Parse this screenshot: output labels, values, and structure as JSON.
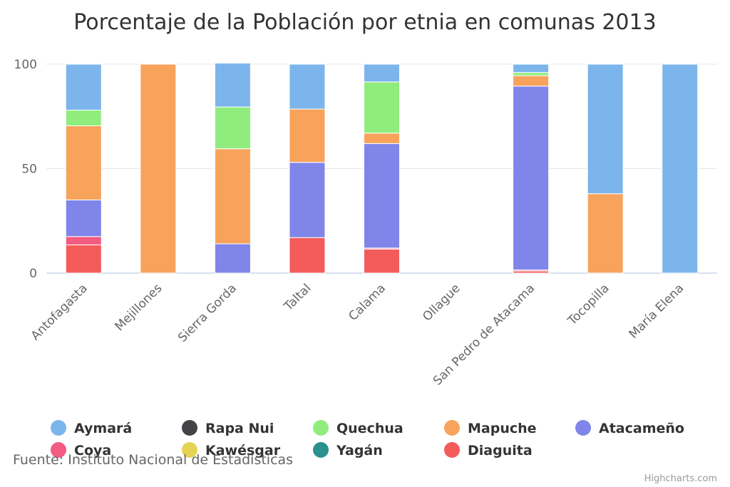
{
  "chart_data": {
    "type": "bar",
    "stacked": true,
    "title": "Porcentaje de la Población por etnia en comunas 2013",
    "categories": [
      "Antofagasta",
      "Mejillones",
      "Sierra Gorda",
      "Taltal",
      "Calama",
      "Ollague",
      "San Pedro de Atacama",
      "Tocopilla",
      "María Elena"
    ],
    "ylim": [
      0,
      100
    ],
    "yticks": [
      0,
      50,
      100
    ],
    "grid": true,
    "legend_position": "bottom",
    "series": [
      {
        "name": "Aymará",
        "color": "#7cb5ec",
        "values": [
          22,
          0,
          21,
          21.5,
          8.5,
          0,
          4,
          62,
          100
        ]
      },
      {
        "name": "Rapa Nui",
        "color": "#434348",
        "values": [
          0,
          0,
          0,
          0,
          0,
          0,
          0,
          0,
          0
        ]
      },
      {
        "name": "Quechua",
        "color": "#90ed7d",
        "values": [
          7.5,
          0,
          20,
          0,
          24.5,
          0,
          1.5,
          0,
          0
        ]
      },
      {
        "name": "Mapuche",
        "color": "#f7a35c",
        "values": [
          35.5,
          100,
          45.5,
          25.5,
          5,
          0,
          5,
          38,
          0
        ]
      },
      {
        "name": "Atacameño",
        "color": "#8085e9",
        "values": [
          17.5,
          0,
          14,
          36,
          50,
          0,
          88,
          0,
          0
        ]
      },
      {
        "name": "Coya",
        "color": "#f15c80",
        "values": [
          4,
          0,
          0,
          0,
          0.5,
          0,
          0.5,
          0,
          0
        ]
      },
      {
        "name": "Kawésgar",
        "color": "#e4d354",
        "values": [
          0,
          0,
          0,
          0,
          0,
          0,
          0,
          0,
          0
        ]
      },
      {
        "name": "Yagán",
        "color": "#2b908f",
        "values": [
          0,
          0,
          0,
          0,
          0,
          0,
          0,
          0,
          0
        ]
      },
      {
        "name": "Diaguita",
        "color": "#f45b5b",
        "values": [
          13.5,
          0,
          0,
          17,
          11.5,
          0,
          1,
          0,
          0
        ]
      }
    ]
  },
  "source": "Fuente: Instituto Nacional de Estadísticas",
  "credits": "Highcharts.com"
}
